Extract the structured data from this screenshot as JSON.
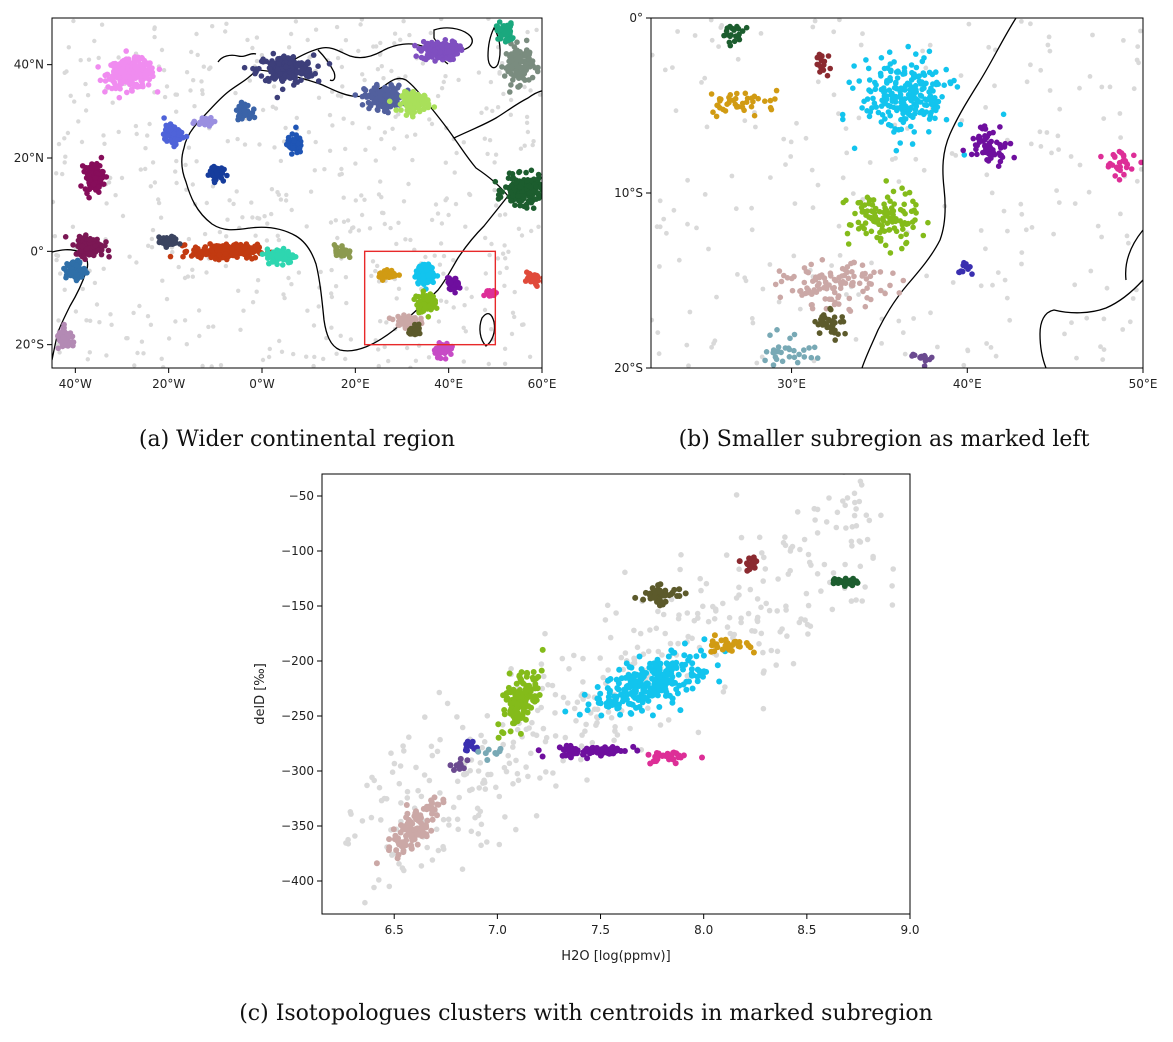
{
  "captions": {
    "a": "(a) Wider continental region",
    "b": "(b) Smaller subregion as marked left",
    "c": "(c) Isotopologues clusters with centroids in marked subregion"
  },
  "colors": {
    "background_points": "#d9d9d9",
    "frame": "#000000",
    "marker_box": "#e8292a",
    "coast": "#000000"
  },
  "chart_data": [
    {
      "id": "a",
      "type": "scatter",
      "title": "",
      "xlabel": "",
      "ylabel": "",
      "xlim": [
        -45,
        60
      ],
      "ylim": [
        -25,
        50
      ],
      "xticks": [
        -40,
        -20,
        0,
        20,
        40,
        60
      ],
      "xtick_labels": [
        "40°W",
        "20°W",
        "0°W",
        "20°E",
        "40°E",
        "60°E"
      ],
      "yticks": [
        40,
        20,
        0,
        -20
      ],
      "ytick_labels": [
        "40°N",
        "20°N",
        "0°",
        "20°S"
      ],
      "grid": false,
      "legend": "none",
      "marked_subregion": {
        "lon": [
          22,
          50
        ],
        "lat": [
          -20,
          0
        ],
        "color": "#e8292a"
      },
      "clusters": [
        {
          "color": "#f08cf0",
          "lon": -28,
          "lat": 38,
          "spread_lon": 5,
          "spread_lat": 3,
          "n": 260
        },
        {
          "color": "#3d3f7a",
          "lon": 5,
          "lat": 39,
          "spread_lon": 6,
          "spread_lat": 3,
          "n": 180
        },
        {
          "color": "#7f4fc0",
          "lon": 38,
          "lat": 43,
          "spread_lon": 4,
          "spread_lat": 2,
          "n": 140
        },
        {
          "color": "#52609e",
          "lon": 26,
          "lat": 33,
          "spread_lon": 4,
          "spread_lat": 2.5,
          "n": 160
        },
        {
          "color": "#a9e05a",
          "lon": 33,
          "lat": 32,
          "spread_lon": 3,
          "spread_lat": 2,
          "n": 110
        },
        {
          "color": "#7a8c7f",
          "lon": 55,
          "lat": 40,
          "spread_lon": 3,
          "spread_lat": 4,
          "n": 120
        },
        {
          "color": "#1c5d2e",
          "lon": 56,
          "lat": 13,
          "spread_lon": 4,
          "spread_lat": 3,
          "n": 200
        },
        {
          "color": "#c23a11",
          "lon": -8,
          "lat": 0,
          "spread_lon": 7,
          "spread_lat": 1.5,
          "n": 240
        },
        {
          "color": "#2ed6b0",
          "lon": 4,
          "lat": -1,
          "spread_lon": 3,
          "spread_lat": 1.5,
          "n": 110
        },
        {
          "color": "#7b1754",
          "lon": -37,
          "lat": 1,
          "spread_lon": 3,
          "spread_lat": 2,
          "n": 130
        },
        {
          "color": "#860d5a",
          "lon": -36,
          "lat": 16,
          "spread_lon": 2,
          "spread_lat": 3,
          "n": 110
        },
        {
          "color": "#2f6fa8",
          "lon": -40,
          "lat": -4,
          "spread_lon": 2,
          "spread_lat": 2,
          "n": 80
        },
        {
          "color": "#4f63d9",
          "lon": -19,
          "lat": 25,
          "spread_lon": 2,
          "spread_lat": 2,
          "n": 80
        },
        {
          "color": "#163c9c",
          "lon": -10,
          "lat": 17,
          "spread_lon": 1.5,
          "spread_lat": 1.5,
          "n": 60
        },
        {
          "color": "#1f55b5",
          "lon": 7,
          "lat": 23,
          "spread_lon": 1.5,
          "spread_lat": 2,
          "n": 60
        },
        {
          "color": "#3b4460",
          "lon": -20,
          "lat": 2,
          "spread_lon": 2,
          "spread_lat": 1,
          "n": 50
        },
        {
          "color": "#8c9a4f",
          "lon": 17,
          "lat": 0,
          "spread_lon": 1.5,
          "spread_lat": 1.5,
          "n": 40
        },
        {
          "color": "#12c4ee",
          "lon": 35,
          "lat": -5,
          "spread_lon": 2,
          "spread_lat": 2,
          "n": 100
        },
        {
          "color": "#84bb1a",
          "lon": 35,
          "lat": -11,
          "spread_lon": 2,
          "spread_lat": 2,
          "n": 80
        },
        {
          "color": "#cba8a6",
          "lon": 31,
          "lat": -15,
          "spread_lon": 2.5,
          "spread_lat": 1.5,
          "n": 70
        },
        {
          "color": "#d19b13",
          "lon": 27,
          "lat": -5,
          "spread_lon": 2,
          "spread_lat": 1,
          "n": 40
        },
        {
          "color": "#6e0f9e",
          "lon": 41,
          "lat": -7,
          "spread_lon": 1.2,
          "spread_lat": 1.2,
          "n": 40
        },
        {
          "color": "#dd2e97",
          "lon": 49,
          "lat": -9,
          "spread_lon": 1,
          "spread_lat": 1,
          "n": 25
        },
        {
          "color": "#c74bc6",
          "lon": 39,
          "lat": -21,
          "spread_lon": 2,
          "spread_lat": 1.5,
          "n": 50
        },
        {
          "color": "#5c5a2b",
          "lon": 33,
          "lat": -17,
          "spread_lon": 1.5,
          "spread_lat": 1,
          "n": 30
        },
        {
          "color": "#b38ab4",
          "lon": -42,
          "lat": -19,
          "spread_lon": 2,
          "spread_lat": 2,
          "n": 60
        },
        {
          "color": "#e04a3a",
          "lon": 58,
          "lat": -6,
          "spread_lon": 2,
          "spread_lat": 1.5,
          "n": 40
        },
        {
          "color": "#1aa87e",
          "lon": 52,
          "lat": 47,
          "spread_lon": 2,
          "spread_lat": 2,
          "n": 50
        },
        {
          "color": "#9a8fe0",
          "lon": -12,
          "lat": 28,
          "spread_lon": 2,
          "spread_lat": 1,
          "n": 40
        },
        {
          "color": "#3a63a8",
          "lon": -4,
          "lat": 30,
          "spread_lon": 1.5,
          "spread_lat": 1.5,
          "n": 40
        }
      ]
    },
    {
      "id": "b",
      "type": "scatter",
      "title": "",
      "xlabel": "",
      "ylabel": "",
      "xlim": [
        22,
        50
      ],
      "ylim": [
        -20,
        0
      ],
      "xticks": [
        30,
        40,
        50
      ],
      "xtick_labels": [
        "30°E",
        "40°E",
        "50°E"
      ],
      "yticks": [
        0,
        -10,
        -20
      ],
      "ytick_labels": [
        "0°",
        "10°S",
        "20°S"
      ],
      "grid": false,
      "legend": "none",
      "clusters": [
        {
          "color": "#12c4ee",
          "lon": 36.5,
          "lat": -4.5,
          "spread_lon": 2.6,
          "spread_lat": 2.2,
          "n": 240
        },
        {
          "color": "#84bb1a",
          "lon": 35.2,
          "lat": -11.5,
          "spread_lon": 2,
          "spread_lat": 1.6,
          "n": 110
        },
        {
          "color": "#cba8a6",
          "lon": 32.5,
          "lat": -15.3,
          "spread_lon": 3,
          "spread_lat": 1.2,
          "n": 110
        },
        {
          "color": "#6e0f9e",
          "lon": 41.3,
          "lat": -7.2,
          "spread_lon": 1.2,
          "spread_lat": 1.1,
          "n": 60
        },
        {
          "color": "#dd2e97",
          "lon": 48.7,
          "lat": -8.4,
          "spread_lon": 1,
          "spread_lat": 0.8,
          "n": 30
        },
        {
          "color": "#d19b13",
          "lon": 27.2,
          "lat": -4.8,
          "spread_lon": 2.2,
          "spread_lat": 0.7,
          "n": 40
        },
        {
          "color": "#1c5d2e",
          "lon": 26.7,
          "lat": -0.9,
          "spread_lon": 0.6,
          "spread_lat": 0.5,
          "n": 20
        },
        {
          "color": "#8b2a30",
          "lon": 31.8,
          "lat": -2.6,
          "spread_lon": 0.7,
          "spread_lat": 0.6,
          "n": 16
        },
        {
          "color": "#5c5a2b",
          "lon": 32.2,
          "lat": -17.4,
          "spread_lon": 0.8,
          "spread_lat": 0.8,
          "n": 40
        },
        {
          "color": "#78a9b5",
          "lon": 29.8,
          "lat": -19,
          "spread_lon": 1.5,
          "spread_lat": 1,
          "n": 30
        },
        {
          "color": "#3a2fb0",
          "lon": 39.8,
          "lat": -14.3,
          "spread_lon": 0.5,
          "spread_lat": 0.5,
          "n": 12
        },
        {
          "color": "#6b4a90",
          "lon": 37.5,
          "lat": -19.3,
          "spread_lon": 0.7,
          "spread_lat": 0.4,
          "n": 14
        }
      ]
    },
    {
      "id": "c",
      "type": "scatter",
      "title": "",
      "xlabel": "H2O [log(ppmv)]",
      "ylabel": "delD [‰]",
      "xlim": [
        6.15,
        9.0
      ],
      "ylim": [
        -430,
        -30
      ],
      "xticks": [
        6.5,
        7.0,
        7.5,
        8.0,
        8.5,
        9.0
      ],
      "yticks": [
        -50,
        -100,
        -150,
        -200,
        -250,
        -300,
        -350,
        -400
      ],
      "grid": false,
      "legend": "none",
      "clusters": [
        {
          "color": "#12c4ee",
          "x": 7.75,
          "y": -220,
          "spread_x": 0.28,
          "spread_y": 28,
          "tilt": 40,
          "n": 280
        },
        {
          "color": "#84bb1a",
          "x": 7.12,
          "y": -235,
          "spread_x": 0.15,
          "spread_y": 22,
          "tilt": 70,
          "n": 130
        },
        {
          "color": "#6e0f9e",
          "x": 7.45,
          "y": -282,
          "spread_x": 0.18,
          "spread_y": 8,
          "tilt": 0,
          "n": 70
        },
        {
          "color": "#dd2e97",
          "x": 7.82,
          "y": -288,
          "spread_x": 0.08,
          "spread_y": 8,
          "tilt": 0,
          "n": 30
        },
        {
          "color": "#d19b13",
          "x": 8.1,
          "y": -185,
          "spread_x": 0.1,
          "spread_y": 10,
          "tilt": 0,
          "n": 30
        },
        {
          "color": "#5c5a2b",
          "x": 7.8,
          "y": -140,
          "spread_x": 0.1,
          "spread_y": 12,
          "tilt": 30,
          "n": 40
        },
        {
          "color": "#8b2a30",
          "x": 8.25,
          "y": -110,
          "spread_x": 0.09,
          "spread_y": 10,
          "tilt": 30,
          "n": 16
        },
        {
          "color": "#1c5d2e",
          "x": 8.68,
          "y": -128,
          "spread_x": 0.05,
          "spread_y": 5,
          "tilt": 0,
          "n": 20
        },
        {
          "color": "#cba8a6",
          "x": 6.6,
          "y": -350,
          "spread_x": 0.15,
          "spread_y": 25,
          "tilt": 50,
          "n": 110
        },
        {
          "color": "#3a2fb0",
          "x": 6.87,
          "y": -278,
          "spread_x": 0.04,
          "spread_y": 8,
          "tilt": 0,
          "n": 12
        },
        {
          "color": "#6b4a90",
          "x": 6.82,
          "y": -295,
          "spread_x": 0.04,
          "spread_y": 8,
          "tilt": 0,
          "n": 10
        },
        {
          "color": "#78a9b5",
          "x": 6.98,
          "y": -285,
          "spread_x": 0.04,
          "spread_y": 6,
          "tilt": 0,
          "n": 8
        }
      ]
    }
  ]
}
